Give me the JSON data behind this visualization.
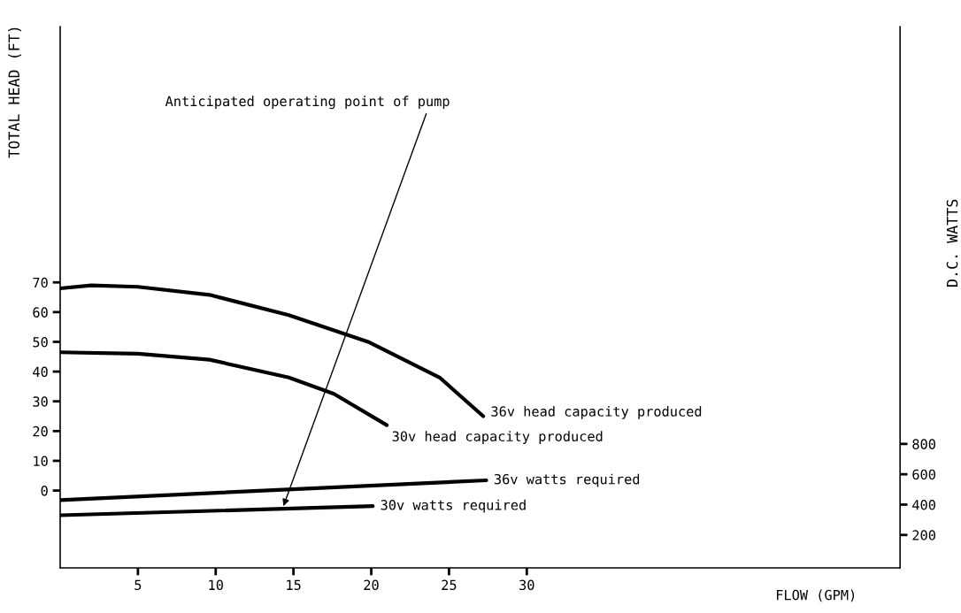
{
  "chart_data": {
    "type": "line",
    "xlabel": "FLOW (GPM)",
    "ylabel": "TOTAL HEAD (FT)",
    "y2label": "D.C. WATTS",
    "xlim": [
      0,
      54
    ],
    "xticks": [
      5,
      10,
      15,
      20,
      25,
      30
    ],
    "ylim": [
      -26,
      156
    ],
    "yticks": [
      0,
      10,
      20,
      30,
      40,
      50,
      60,
      70
    ],
    "y2lim": [
      -17,
      3550
    ],
    "y2ticks": [
      200,
      400,
      600,
      800
    ],
    "series": [
      {
        "name": "36v head capacity produced",
        "color": "#000000",
        "x": [
          0,
          2,
          5,
          9.6,
          14.7,
          19.8,
          24.4,
          27.2
        ],
        "values": [
          68,
          69,
          68.5,
          65.8,
          59,
          50,
          38,
          25
        ]
      },
      {
        "name": "30v head capacity produced",
        "color": "#000000",
        "x": [
          0,
          5,
          9.6,
          14.7,
          17.6,
          21
        ],
        "values": [
          46.5,
          46,
          44,
          38,
          32.5,
          22
        ]
      },
      {
        "name": "36v watts required",
        "color": "#000000",
        "axis": "y2",
        "x": [
          0,
          27.4
        ],
        "values": [
          430,
          560
        ]
      },
      {
        "name": "30v watts required",
        "color": "#000000",
        "axis": "y2",
        "x": [
          0,
          20.1
        ],
        "values": [
          330,
          390
        ]
      }
    ],
    "annotations": [
      {
        "text": "Anticipated operating point of pump",
        "x": 14.3,
        "y": -6
      }
    ],
    "grid": false,
    "legend": false,
    "marker": "none",
    "line_style": "solid"
  }
}
